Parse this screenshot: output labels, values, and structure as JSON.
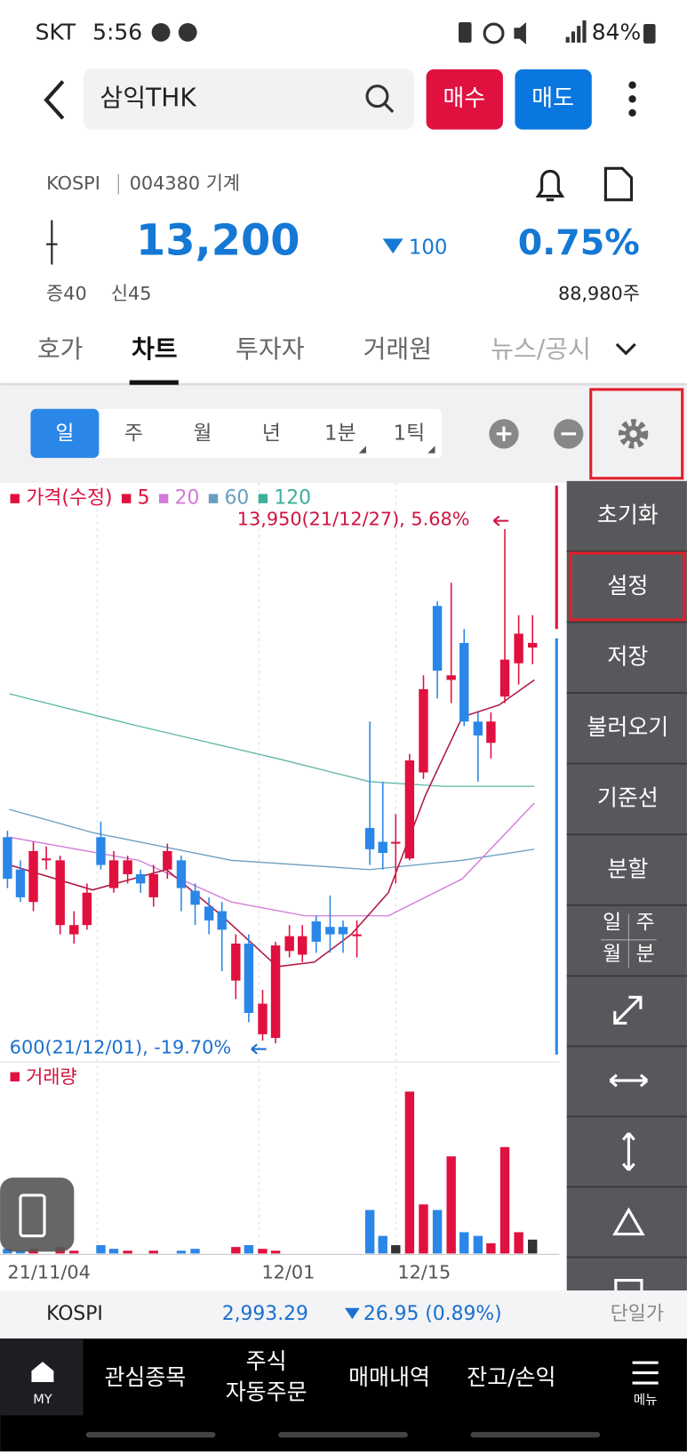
{
  "status_bar": {
    "carrier": "SKT",
    "time": "5:56",
    "battery": "84%"
  },
  "header": {
    "search": "삼익THK",
    "buy": "매수",
    "sell": "매도"
  },
  "stock": {
    "market": "KOSPI",
    "code": "004380 기계",
    "price": "13,200",
    "change": "100",
    "rate": "0.75%",
    "margin_a": "증40",
    "margin_b": "신45",
    "volume": "88,980주"
  },
  "tabs": [
    "호가",
    "차트",
    "투자자",
    "거래원",
    "뉴스/공시"
  ],
  "periods": [
    "일",
    "주",
    "월",
    "년",
    "1분",
    "1틱"
  ],
  "legend": [
    "가격(수정)",
    "5",
    "20",
    "60",
    "120"
  ],
  "annotations": {
    "high": "13,950(21/12/27), 5.68%",
    "low": "600(21/12/01), -19.70%",
    "volume": "거래량"
  },
  "side_menu": [
    "초기화",
    "설정",
    "저장",
    "불러오기",
    "기준선",
    "분할"
  ],
  "period_grid": [
    "일",
    "주",
    "월",
    "분"
  ],
  "x_labels": [
    "21/11/04",
    "12/01",
    "12/15"
  ],
  "index_bar": {
    "name": "KOSPI",
    "value": "2,993.29",
    "change": "26.95 (0.89%)",
    "mode": "단일가"
  },
  "bottom_nav": {
    "home": "MY",
    "items": [
      "관심종목",
      "주식",
      "자동주문",
      "매매내역",
      "잔고/손익"
    ],
    "menu": "메뉴"
  }
}
